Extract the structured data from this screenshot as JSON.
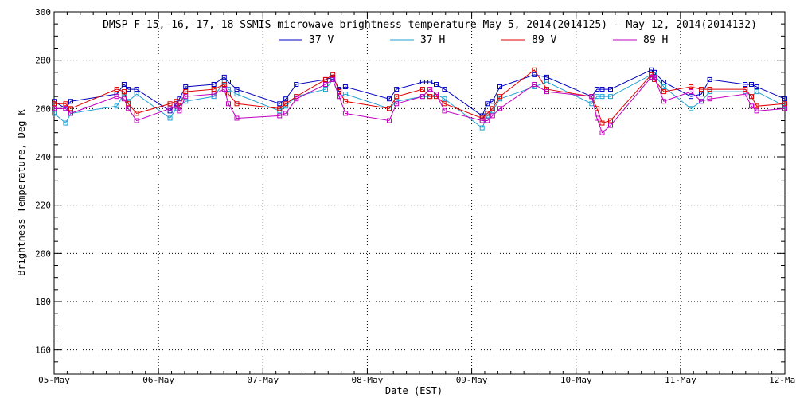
{
  "chart_data": {
    "type": "line",
    "title": "DMSP F-15,-16,-17,-18 SSMIS microwave brightness temperature May  5, 2014(2014125) - May 12, 2014(2014132)",
    "xlabel": "Date (EST)",
    "ylabel": "Brightness Temperature, Deg K",
    "xlim": [
      0,
      7
    ],
    "ylim": [
      150,
      300
    ],
    "x_ticks": [
      {
        "value": 0,
        "label": "05-May"
      },
      {
        "value": 1,
        "label": "06-May"
      },
      {
        "value": 2,
        "label": "07-May"
      },
      {
        "value": 3,
        "label": "08-May"
      },
      {
        "value": 4,
        "label": "09-May"
      },
      {
        "value": 5,
        "label": "10-May"
      },
      {
        "value": 6,
        "label": "11-May"
      },
      {
        "value": 7,
        "label": "12-May"
      }
    ],
    "y_ticks": [
      160,
      180,
      200,
      220,
      240,
      260,
      280,
      300
    ],
    "grid": true,
    "legend": "top-center",
    "marker": "square",
    "series": [
      {
        "name": "37 V",
        "color": "#0000c0",
        "points": [
          [
            0,
            263
          ],
          [
            0.11,
            260
          ],
          [
            0.16,
            263
          ],
          [
            0.6,
            266
          ],
          [
            0.67,
            270
          ],
          [
            0.71,
            268
          ],
          [
            0.79,
            268
          ],
          [
            1.11,
            259
          ],
          [
            1.17,
            262
          ],
          [
            1.2,
            264
          ],
          [
            1.26,
            269
          ],
          [
            1.53,
            270
          ],
          [
            1.63,
            273
          ],
          [
            1.67,
            271
          ],
          [
            1.75,
            268
          ],
          [
            2.16,
            262
          ],
          [
            2.22,
            264
          ],
          [
            2.32,
            270
          ],
          [
            2.6,
            272
          ],
          [
            2.67,
            273
          ],
          [
            2.73,
            268
          ],
          [
            2.79,
            269
          ],
          [
            3.21,
            264
          ],
          [
            3.28,
            268
          ],
          [
            3.53,
            271
          ],
          [
            3.6,
            271
          ],
          [
            3.66,
            270
          ],
          [
            3.74,
            268
          ],
          [
            4.1,
            257
          ],
          [
            4.15,
            262
          ],
          [
            4.2,
            263
          ],
          [
            4.27,
            269
          ],
          [
            4.6,
            274
          ],
          [
            4.72,
            273
          ],
          [
            5.15,
            265
          ],
          [
            5.2,
            268
          ],
          [
            5.25,
            268
          ],
          [
            5.33,
            268
          ],
          [
            5.72,
            276
          ],
          [
            5.75,
            275
          ],
          [
            5.84,
            271
          ],
          [
            6.1,
            265
          ],
          [
            6.2,
            266
          ],
          [
            6.28,
            272
          ],
          [
            6.62,
            270
          ],
          [
            6.68,
            270
          ],
          [
            6.73,
            269
          ],
          [
            7,
            264
          ]
        ]
      },
      {
        "name": "37 H",
        "color": "#20a0d0",
        "points": [
          [
            0,
            258
          ],
          [
            0.11,
            254
          ],
          [
            0.16,
            258
          ],
          [
            0.6,
            261
          ],
          [
            0.67,
            266
          ],
          [
            0.71,
            263
          ],
          [
            0.79,
            266
          ],
          [
            1.11,
            256
          ],
          [
            1.17,
            260
          ],
          [
            1.2,
            261
          ],
          [
            1.26,
            263
          ],
          [
            1.53,
            265
          ],
          [
            1.63,
            271
          ],
          [
            1.67,
            268
          ],
          [
            1.75,
            266
          ],
          [
            2.16,
            259
          ],
          [
            2.22,
            261
          ],
          [
            2.32,
            265
          ],
          [
            2.6,
            268
          ],
          [
            2.67,
            272
          ],
          [
            2.73,
            265
          ],
          [
            2.79,
            266
          ],
          [
            3.21,
            260
          ],
          [
            3.28,
            263
          ],
          [
            3.53,
            265
          ],
          [
            3.6,
            265
          ],
          [
            3.66,
            266
          ],
          [
            3.74,
            264
          ],
          [
            4.1,
            252
          ],
          [
            4.15,
            257
          ],
          [
            4.2,
            259
          ],
          [
            4.27,
            264
          ],
          [
            4.6,
            269
          ],
          [
            4.72,
            271
          ],
          [
            5.15,
            262
          ],
          [
            5.2,
            265
          ],
          [
            5.25,
            265
          ],
          [
            5.33,
            265
          ],
          [
            5.72,
            274
          ],
          [
            5.75,
            274
          ],
          [
            5.84,
            269
          ],
          [
            6.1,
            260
          ],
          [
            6.2,
            263
          ],
          [
            6.28,
            267
          ],
          [
            6.62,
            267
          ],
          [
            6.68,
            265
          ],
          [
            6.73,
            267
          ],
          [
            7,
            261
          ]
        ]
      },
      {
        "name": "89 V",
        "color": "#e00000",
        "points": [
          [
            0,
            262
          ],
          [
            0.11,
            262
          ],
          [
            0.16,
            260
          ],
          [
            0.6,
            268
          ],
          [
            0.67,
            267
          ],
          [
            0.71,
            262
          ],
          [
            0.79,
            258
          ],
          [
            1.11,
            262
          ],
          [
            1.17,
            263
          ],
          [
            1.2,
            261
          ],
          [
            1.26,
            267
          ],
          [
            1.53,
            268
          ],
          [
            1.63,
            270
          ],
          [
            1.67,
            266
          ],
          [
            1.75,
            262
          ],
          [
            2.16,
            260
          ],
          [
            2.22,
            262
          ],
          [
            2.32,
            265
          ],
          [
            2.6,
            272
          ],
          [
            2.67,
            274
          ],
          [
            2.73,
            267
          ],
          [
            2.79,
            263
          ],
          [
            3.21,
            260
          ],
          [
            3.28,
            265
          ],
          [
            3.53,
            268
          ],
          [
            3.6,
            265
          ],
          [
            3.66,
            265
          ],
          [
            3.74,
            262
          ],
          [
            4.1,
            256
          ],
          [
            4.15,
            258
          ],
          [
            4.2,
            260
          ],
          [
            4.27,
            265
          ],
          [
            4.6,
            276
          ],
          [
            4.72,
            268
          ],
          [
            5.15,
            265
          ],
          [
            5.2,
            260
          ],
          [
            5.25,
            254
          ],
          [
            5.33,
            255
          ],
          [
            5.72,
            274
          ],
          [
            5.75,
            272
          ],
          [
            5.84,
            267
          ],
          [
            6.1,
            269
          ],
          [
            6.2,
            268
          ],
          [
            6.28,
            268
          ],
          [
            6.62,
            268
          ],
          [
            6.68,
            265
          ],
          [
            6.73,
            261
          ],
          [
            7,
            262
          ]
        ]
      },
      {
        "name": "89 H",
        "color": "#c000c0",
        "points": [
          [
            0,
            260
          ],
          [
            0.11,
            260
          ],
          [
            0.16,
            258
          ],
          [
            0.6,
            265
          ],
          [
            0.67,
            264
          ],
          [
            0.71,
            260
          ],
          [
            0.79,
            255
          ],
          [
            1.11,
            260
          ],
          [
            1.17,
            261
          ],
          [
            1.2,
            259
          ],
          [
            1.26,
            265
          ],
          [
            1.53,
            266
          ],
          [
            1.63,
            268
          ],
          [
            1.67,
            262
          ],
          [
            1.75,
            256
          ],
          [
            2.16,
            257
          ],
          [
            2.22,
            258
          ],
          [
            2.32,
            264
          ],
          [
            2.6,
            270
          ],
          [
            2.67,
            272
          ],
          [
            2.73,
            265
          ],
          [
            2.79,
            258
          ],
          [
            3.21,
            255
          ],
          [
            3.28,
            262
          ],
          [
            3.53,
            265
          ],
          [
            3.6,
            268
          ],
          [
            3.66,
            266
          ],
          [
            3.74,
            259
          ],
          [
            4.1,
            255
          ],
          [
            4.15,
            255
          ],
          [
            4.2,
            257
          ],
          [
            4.27,
            260
          ],
          [
            4.6,
            270
          ],
          [
            4.72,
            267
          ],
          [
            5.15,
            265
          ],
          [
            5.2,
            256
          ],
          [
            5.25,
            250
          ],
          [
            5.33,
            253
          ],
          [
            5.72,
            273
          ],
          [
            5.75,
            273
          ],
          [
            5.84,
            263
          ],
          [
            6.1,
            267
          ],
          [
            6.2,
            263
          ],
          [
            6.28,
            264
          ],
          [
            6.62,
            266
          ],
          [
            6.68,
            261
          ],
          [
            6.73,
            259
          ],
          [
            7,
            260
          ]
        ]
      }
    ]
  }
}
